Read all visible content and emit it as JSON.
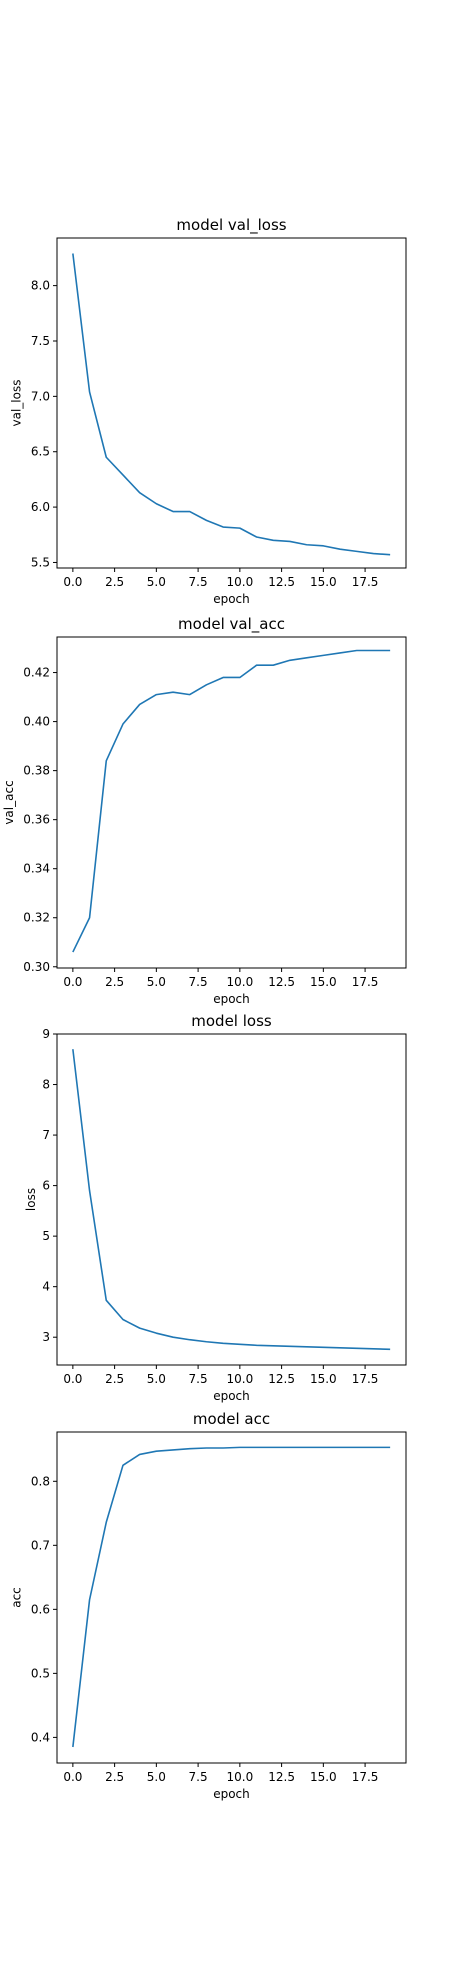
{
  "chart_data": [
    {
      "type": "line",
      "title": "model val_loss",
      "xlabel": "epoch",
      "ylabel": "val_loss",
      "xlim": [
        -0.95,
        19.95
      ],
      "ylim": [
        5.45,
        8.43
      ],
      "xticks": [
        0.0,
        2.5,
        5.0,
        7.5,
        10.0,
        12.5,
        15.0,
        17.5
      ],
      "xtick_labels": [
        "0.0",
        "2.5",
        "5.0",
        "7.5",
        "10.0",
        "12.5",
        "15.0",
        "17.5"
      ],
      "yticks": [
        5.5,
        6.0,
        6.5,
        7.0,
        7.5,
        8.0
      ],
      "ytick_labels": [
        "5.5",
        "6.0",
        "6.5",
        "7.0",
        "7.5",
        "8.0"
      ],
      "grid": false,
      "series": [
        {
          "color": "#1f77b4",
          "x": [
            0,
            1,
            2,
            3,
            4,
            5,
            6,
            7,
            8,
            9,
            10,
            11,
            12,
            13,
            14,
            15,
            16,
            17,
            18,
            19
          ],
          "y": [
            8.29,
            7.04,
            6.45,
            6.29,
            6.13,
            6.03,
            5.96,
            5.96,
            5.88,
            5.82,
            5.81,
            5.73,
            5.7,
            5.69,
            5.66,
            5.65,
            5.62,
            5.6,
            5.58,
            5.57
          ]
        }
      ]
    },
    {
      "type": "line",
      "title": "model val_acc",
      "xlabel": "epoch",
      "ylabel": "val_acc",
      "xlim": [
        -0.95,
        19.95
      ],
      "ylim": [
        0.2995,
        0.4345
      ],
      "xticks": [
        0.0,
        2.5,
        5.0,
        7.5,
        10.0,
        12.5,
        15.0,
        17.5
      ],
      "xtick_labels": [
        "0.0",
        "2.5",
        "5.0",
        "7.5",
        "10.0",
        "12.5",
        "15.0",
        "17.5"
      ],
      "yticks": [
        0.3,
        0.32,
        0.34,
        0.36,
        0.38,
        0.4,
        0.42
      ],
      "ytick_labels": [
        "0.30",
        "0.32",
        "0.34",
        "0.36",
        "0.38",
        "0.40",
        "0.42"
      ],
      "grid": false,
      "series": [
        {
          "color": "#1f77b4",
          "x": [
            0,
            1,
            2,
            3,
            4,
            5,
            6,
            7,
            8,
            9,
            10,
            11,
            12,
            13,
            14,
            15,
            16,
            17,
            18,
            19
          ],
          "y": [
            0.306,
            0.32,
            0.384,
            0.399,
            0.407,
            0.411,
            0.412,
            0.411,
            0.415,
            0.418,
            0.418,
            0.423,
            0.423,
            0.425,
            0.426,
            0.427,
            0.428,
            0.429,
            0.429,
            0.429
          ]
        }
      ]
    },
    {
      "type": "line",
      "title": "model loss",
      "xlabel": "epoch",
      "ylabel": "loss",
      "xlim": [
        -0.95,
        19.95
      ],
      "ylim": [
        2.45,
        9.0
      ],
      "xticks": [
        0.0,
        2.5,
        5.0,
        7.5,
        10.0,
        12.5,
        15.0,
        17.5
      ],
      "xtick_labels": [
        "0.0",
        "2.5",
        "5.0",
        "7.5",
        "10.0",
        "12.5",
        "15.0",
        "17.5"
      ],
      "yticks": [
        3,
        4,
        5,
        6,
        7,
        8,
        9
      ],
      "ytick_labels": [
        "3",
        "4",
        "5",
        "6",
        "7",
        "8",
        "9"
      ],
      "grid": false,
      "series": [
        {
          "color": "#1f77b4",
          "x": [
            0,
            1,
            2,
            3,
            4,
            5,
            6,
            7,
            8,
            9,
            10,
            11,
            12,
            13,
            14,
            15,
            16,
            17,
            18,
            19
          ],
          "y": [
            8.7,
            5.9,
            3.73,
            3.35,
            3.18,
            3.08,
            3.0,
            2.95,
            2.91,
            2.88,
            2.86,
            2.84,
            2.83,
            2.82,
            2.81,
            2.8,
            2.79,
            2.78,
            2.77,
            2.76
          ]
        }
      ]
    },
    {
      "type": "line",
      "title": "model acc",
      "xlabel": "epoch",
      "ylabel": "acc",
      "xlim": [
        -0.95,
        19.95
      ],
      "ylim": [
        0.36,
        0.877
      ],
      "xticks": [
        0.0,
        2.5,
        5.0,
        7.5,
        10.0,
        12.5,
        15.0,
        17.5
      ],
      "xtick_labels": [
        "0.0",
        "2.5",
        "5.0",
        "7.5",
        "10.0",
        "12.5",
        "15.0",
        "17.5"
      ],
      "yticks": [
        0.4,
        0.5,
        0.6,
        0.7,
        0.8
      ],
      "ytick_labels": [
        "0.4",
        "0.5",
        "0.6",
        "0.7",
        "0.8"
      ],
      "grid": false,
      "series": [
        {
          "color": "#1f77b4",
          "x": [
            0,
            1,
            2,
            3,
            4,
            5,
            6,
            7,
            8,
            9,
            10,
            11,
            12,
            13,
            14,
            15,
            16,
            17,
            18,
            19
          ],
          "y": [
            0.385,
            0.615,
            0.736,
            0.825,
            0.842,
            0.847,
            0.849,
            0.851,
            0.852,
            0.852,
            0.853,
            0.853,
            0.853,
            0.853,
            0.853,
            0.853,
            0.853,
            0.853,
            0.853,
            0.853
          ]
        }
      ]
    }
  ]
}
